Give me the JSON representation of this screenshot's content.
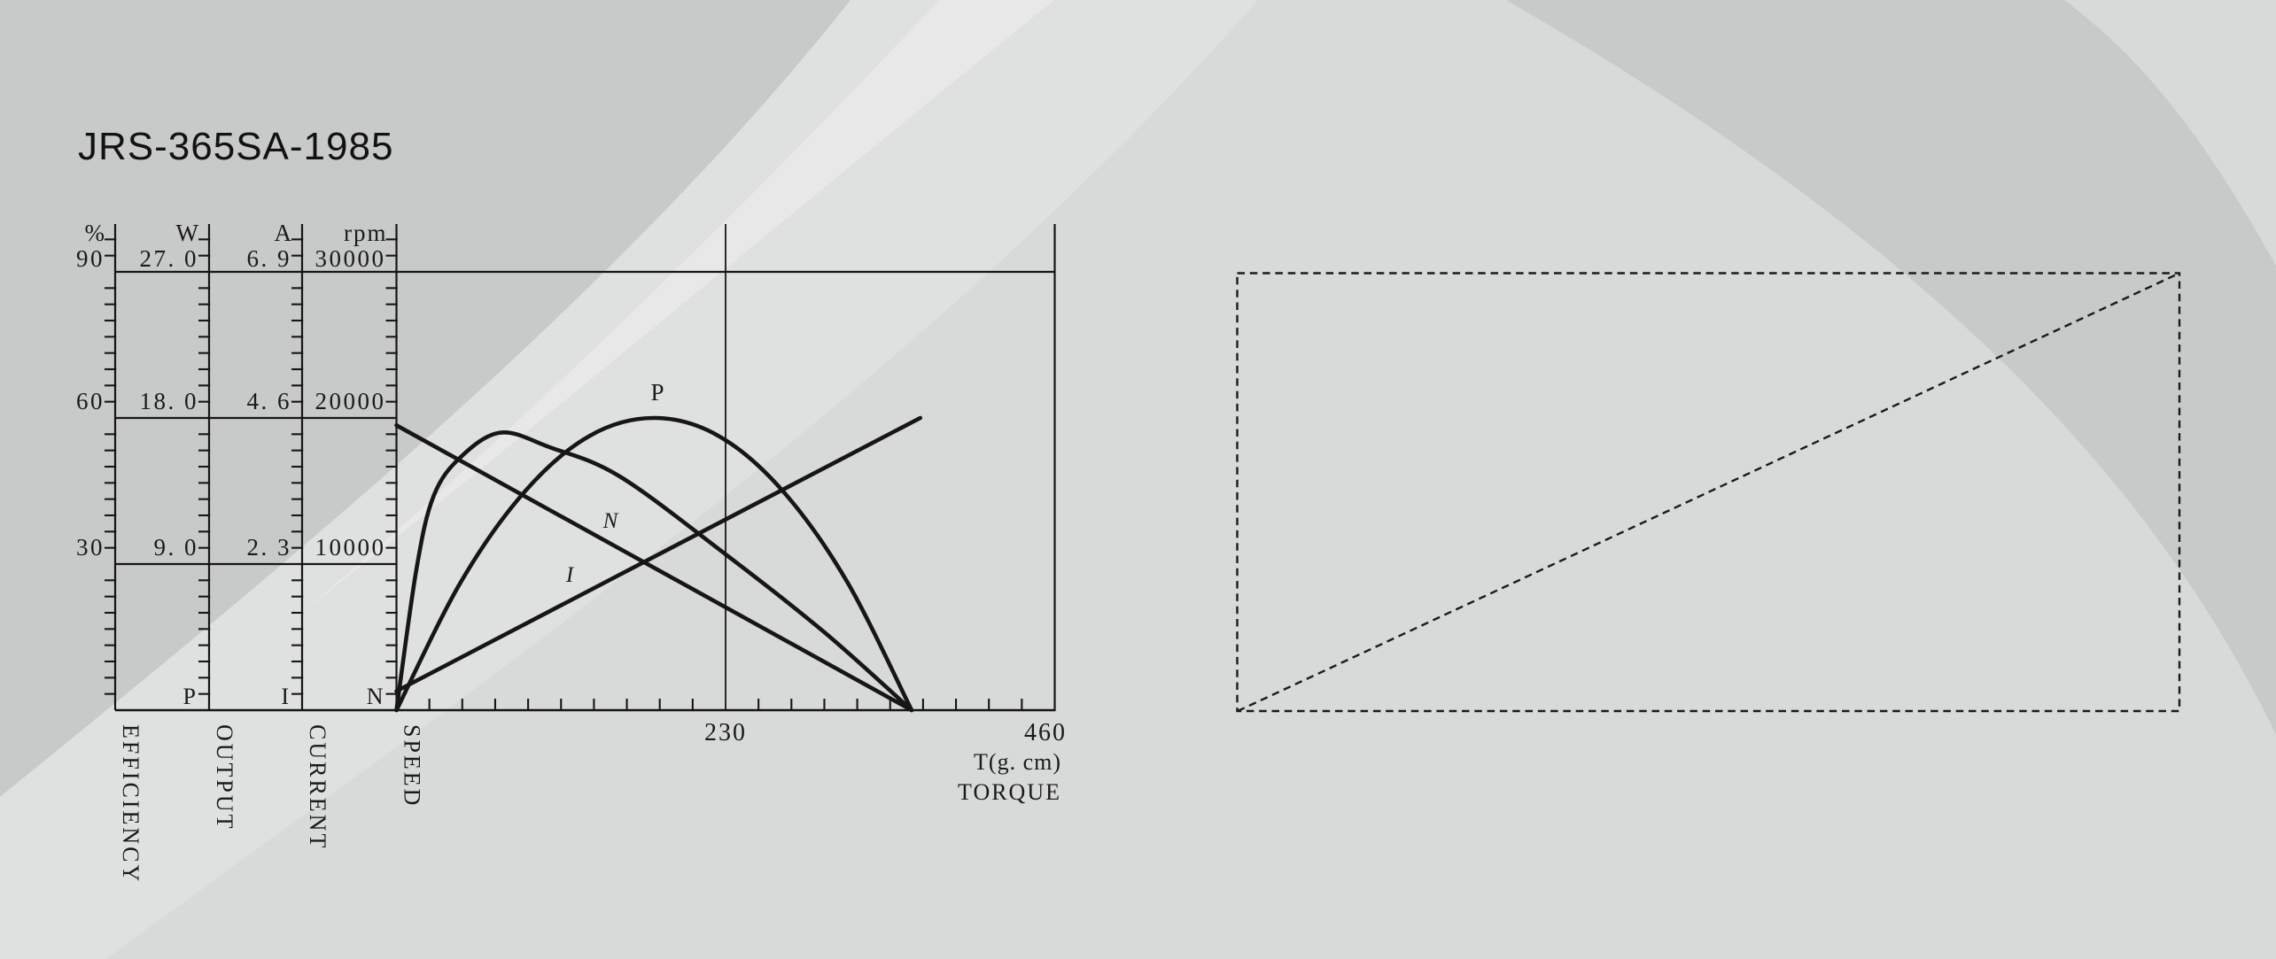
{
  "title": "JRS-365SA-1985",
  "colors": {
    "ink": "#161616",
    "bg_base": "#d8d9d9",
    "bg_dark_band": "#c8c9c9",
    "bg_light_band": "#dfe0e0",
    "bg_bright_blade": "#e8e8e8"
  },
  "chart": {
    "y_cols": [
      {
        "unit": "%",
        "values": [
          "90",
          "60",
          "30"
        ],
        "axis_letter": "",
        "name": "EFFICIENCY"
      },
      {
        "unit": "W",
        "values": [
          "27. 0",
          "18. 0",
          "9. 0"
        ],
        "axis_letter": "P",
        "name": "OUTPUT"
      },
      {
        "unit": "A",
        "values": [
          "6. 9",
          "4. 6",
          "2. 3"
        ],
        "axis_letter": "I",
        "name": "CURRENT"
      },
      {
        "unit": "rpm",
        "values": [
          "30000",
          "20000",
          "10000"
        ],
        "axis_letter": "N",
        "name": "SPEED"
      }
    ],
    "x_axis": {
      "values": [
        "230",
        "460"
      ],
      "unit": "T(g. cm)",
      "name": "TORQUE"
    },
    "curve_labels": {
      "output": "P",
      "speed": "N",
      "current": "I"
    }
  },
  "chart_data": {
    "type": "line",
    "title": "JRS-365SA-1985 motor performance curves vs torque",
    "x_axis": {
      "label": "TORQUE",
      "unit": "T(g. cm)",
      "range": [
        0,
        460
      ],
      "labeled_ticks": [
        230,
        460
      ],
      "minor_tick_step": 23
    },
    "y_axes": [
      {
        "id": "efficiency",
        "unit": "%",
        "range": [
          0,
          90
        ],
        "gridline_values": [
          30,
          60,
          90
        ]
      },
      {
        "id": "output",
        "unit": "W",
        "range": [
          0,
          27
        ],
        "gridline_values": [
          9.0,
          18.0,
          27.0
        ]
      },
      {
        "id": "current",
        "unit": "A",
        "range": [
          0,
          6.9
        ],
        "gridline_values": [
          2.3,
          4.6,
          6.9
        ]
      },
      {
        "id": "speed",
        "unit": "rpm",
        "range": [
          0,
          30000
        ],
        "gridline_values": [
          10000,
          20000,
          30000
        ]
      }
    ],
    "legend_position": "inline-curve-labels",
    "grid": "partial",
    "series": [
      {
        "name": "speed",
        "label": "N",
        "axis": "rpm",
        "style": "straight",
        "points": [
          [
            0,
            19500
          ],
          [
            360,
            0
          ]
        ]
      },
      {
        "name": "current",
        "label": "I",
        "axis": "A",
        "style": "straight",
        "points": [
          [
            0,
            0.3
          ],
          [
            366,
            4.6
          ]
        ]
      },
      {
        "name": "output",
        "label": "P",
        "axis": "W",
        "style": "smooth",
        "points": [
          [
            0,
            0
          ],
          [
            45,
            7.9
          ],
          [
            90,
            13.5
          ],
          [
            135,
            16.9
          ],
          [
            180,
            18.0
          ],
          [
            225,
            16.9
          ],
          [
            270,
            13.5
          ],
          [
            315,
            7.9
          ],
          [
            360,
            0
          ]
        ]
      },
      {
        "name": "efficiency",
        "label": "",
        "axis": "%",
        "style": "smooth",
        "points": [
          [
            0,
            0
          ],
          [
            14,
            29
          ],
          [
            26,
            44
          ],
          [
            45,
            52
          ],
          [
            73,
            57
          ],
          [
            107,
            54
          ],
          [
            156,
            48
          ],
          [
            230,
            32
          ],
          [
            299,
            16
          ],
          [
            360,
            0
          ]
        ]
      }
    ],
    "annotations": [
      {
        "type": "vertical-reference-line",
        "x": 230
      },
      {
        "type": "dashed-rectangle-with-diagonal",
        "note": "empty placeholder frame on right side"
      }
    ]
  }
}
